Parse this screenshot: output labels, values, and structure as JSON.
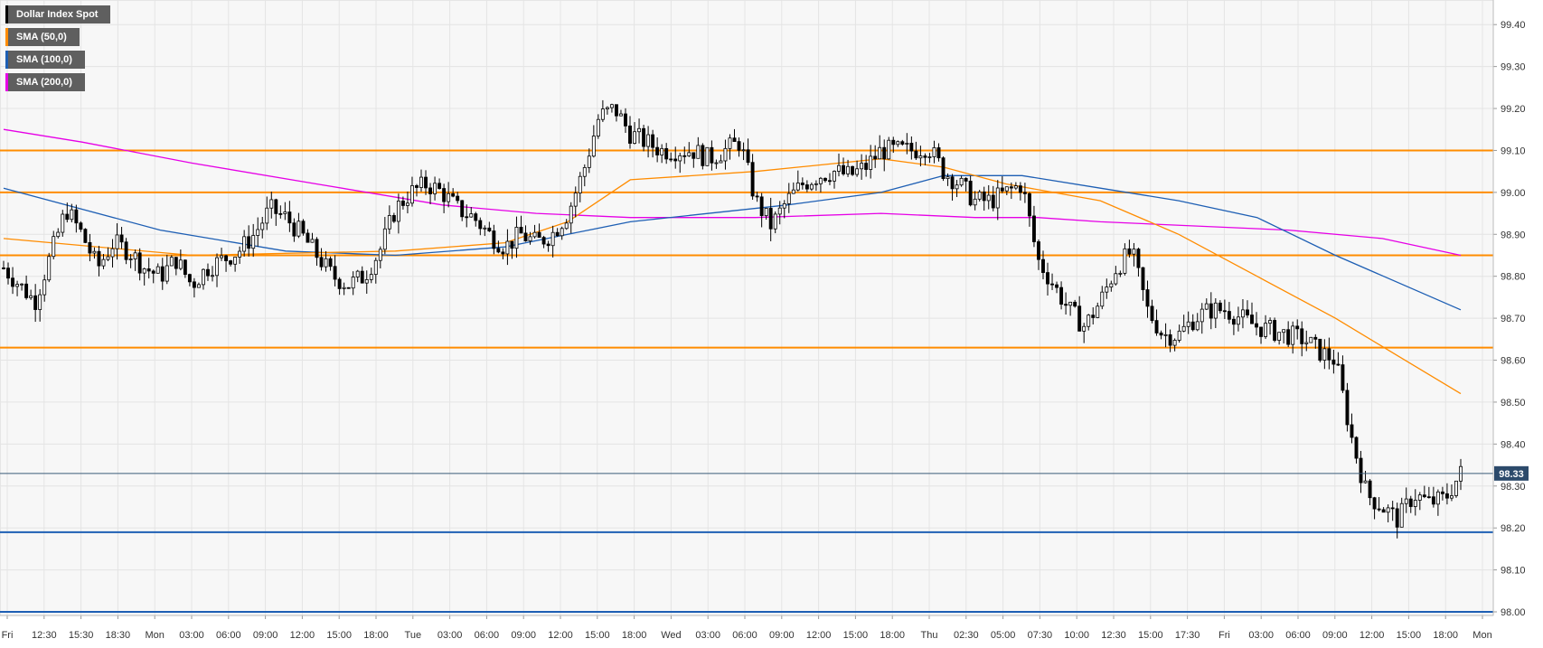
{
  "legend": {
    "items": [
      {
        "label": "Dollar Index Spot",
        "color": "#000000"
      },
      {
        "label": "SMA (50,0)",
        "color": "#ff8c00"
      },
      {
        "label": "SMA (100,0)",
        "color": "#1e5fb4"
      },
      {
        "label": "SMA (200,0)",
        "color": "#e600e6"
      }
    ]
  },
  "chart_data": {
    "type": "candlestick",
    "instrument": "Dollar Index Spot",
    "interval": "30 minutes",
    "ylim": [
      98.0,
      99.5
    ],
    "y_ticks": [
      "98.00",
      "98.10",
      "98.20",
      "98.30",
      "98.40",
      "98.50",
      "98.60",
      "98.70",
      "98.80",
      "98.90",
      "99.00",
      "99.10",
      "99.20",
      "99.30",
      "99.40"
    ],
    "x_ticks": [
      "Fri",
      "12:30",
      "15:30",
      "18:30",
      "Mon",
      "03:00",
      "06:00",
      "09:00",
      "12:00",
      "15:00",
      "18:00",
      "Tue",
      "03:00",
      "06:00",
      "09:00",
      "12:00",
      "15:00",
      "18:00",
      "Wed",
      "03:00",
      "06:00",
      "09:00",
      "12:00",
      "15:00",
      "18:00",
      "Thu",
      "02:30",
      "05:00",
      "07:30",
      "10:00",
      "12:30",
      "15:00",
      "17:30",
      "Fri",
      "03:00",
      "06:00",
      "09:00",
      "12:00",
      "15:00",
      "18:00",
      "Mon"
    ],
    "grid": true,
    "current_price": "98.33",
    "horizontal_levels": [
      {
        "value": 99.1,
        "color": "#ff8c00"
      },
      {
        "value": 99.0,
        "color": "#ff8c00"
      },
      {
        "value": 98.85,
        "color": "#ff8c00"
      },
      {
        "value": 98.63,
        "color": "#ff8c00"
      },
      {
        "value": 98.19,
        "color": "#1e5fb4"
      },
      {
        "value": 98.0,
        "color": "#1e5fb4"
      }
    ],
    "price_anchors": [
      [
        0,
        98.82
      ],
      [
        1,
        98.78
      ],
      [
        2,
        98.74
      ],
      [
        3,
        98.85
      ],
      [
        4,
        98.96
      ],
      [
        5,
        98.9
      ],
      [
        6,
        98.82
      ],
      [
        7,
        98.88
      ],
      [
        8,
        98.86
      ],
      [
        9,
        98.82
      ],
      [
        10,
        98.8
      ],
      [
        11,
        98.84
      ],
      [
        12,
        98.78
      ],
      [
        13,
        98.82
      ],
      [
        14,
        98.84
      ],
      [
        15,
        98.86
      ],
      [
        16,
        98.9
      ],
      [
        17,
        98.96
      ],
      [
        18,
        98.94
      ],
      [
        19,
        98.9
      ],
      [
        20,
        98.85
      ],
      [
        21,
        98.8
      ],
      [
        22,
        98.78
      ],
      [
        23,
        98.8
      ],
      [
        24,
        98.86
      ],
      [
        25,
        98.96
      ],
      [
        26,
        99.0
      ],
      [
        27,
        99.02
      ],
      [
        28,
        99.0
      ],
      [
        29,
        98.96
      ],
      [
        30,
        98.94
      ],
      [
        31,
        98.9
      ],
      [
        32,
        98.87
      ],
      [
        33,
        98.9
      ],
      [
        34,
        98.88
      ],
      [
        35,
        98.9
      ],
      [
        36,
        98.95
      ],
      [
        37,
        99.05
      ],
      [
        38,
        99.18
      ],
      [
        39,
        99.2
      ],
      [
        40,
        99.14
      ],
      [
        41,
        99.12
      ],
      [
        42,
        99.1
      ],
      [
        43,
        99.1
      ],
      [
        44,
        99.1
      ],
      [
        45,
        99.08
      ],
      [
        46,
        99.1
      ],
      [
        47,
        99.12
      ],
      [
        48,
        98.98
      ],
      [
        49,
        98.92
      ],
      [
        50,
        98.98
      ],
      [
        51,
        99.02
      ],
      [
        52,
        99.04
      ],
      [
        53,
        99.05
      ],
      [
        54,
        99.04
      ],
      [
        55,
        99.06
      ],
      [
        56,
        99.1
      ],
      [
        57,
        99.1
      ],
      [
        58,
        99.1
      ],
      [
        59,
        99.11
      ],
      [
        60,
        99.05
      ],
      [
        61,
        99.02
      ],
      [
        62,
        98.98
      ],
      [
        63,
        98.98
      ],
      [
        64,
        99.0
      ],
      [
        65,
        99.02
      ],
      [
        66,
        98.84
      ],
      [
        67,
        98.78
      ],
      [
        68,
        98.72
      ],
      [
        69,
        98.68
      ],
      [
        70,
        98.74
      ],
      [
        71,
        98.82
      ],
      [
        72,
        98.86
      ],
      [
        73,
        98.72
      ],
      [
        74,
        98.66
      ],
      [
        75,
        98.66
      ],
      [
        76,
        98.7
      ],
      [
        77,
        98.72
      ],
      [
        78,
        98.72
      ],
      [
        79,
        98.7
      ],
      [
        80,
        98.68
      ],
      [
        81,
        98.67
      ],
      [
        82,
        98.66
      ],
      [
        83,
        98.65
      ],
      [
        84,
        98.62
      ],
      [
        85,
        98.6
      ],
      [
        86,
        98.42
      ],
      [
        87,
        98.28
      ],
      [
        88,
        98.25
      ],
      [
        89,
        98.22
      ],
      [
        90,
        98.28
      ],
      [
        91,
        98.26
      ],
      [
        92,
        98.27
      ],
      [
        93,
        98.33
      ]
    ],
    "sma_50": [
      [
        0,
        98.89
      ],
      [
        12,
        98.85
      ],
      [
        25,
        98.86
      ],
      [
        32,
        98.88
      ],
      [
        36,
        98.93
      ],
      [
        40,
        99.03
      ],
      [
        48,
        99.05
      ],
      [
        56,
        99.08
      ],
      [
        60,
        99.06
      ],
      [
        64,
        99.02
      ],
      [
        70,
        98.98
      ],
      [
        75,
        98.9
      ],
      [
        80,
        98.8
      ],
      [
        85,
        98.7
      ],
      [
        89,
        98.61
      ],
      [
        93,
        98.52
      ]
    ],
    "sma_100": [
      [
        0,
        99.01
      ],
      [
        10,
        98.91
      ],
      [
        18,
        98.86
      ],
      [
        25,
        98.85
      ],
      [
        32,
        98.87
      ],
      [
        40,
        98.93
      ],
      [
        50,
        98.97
      ],
      [
        56,
        99.0
      ],
      [
        60,
        99.04
      ],
      [
        65,
        99.04
      ],
      [
        70,
        99.01
      ],
      [
        75,
        98.98
      ],
      [
        80,
        98.94
      ],
      [
        85,
        98.85
      ],
      [
        93,
        98.72
      ]
    ],
    "sma_200": [
      [
        0,
        99.15
      ],
      [
        5,
        99.12
      ],
      [
        12,
        99.07
      ],
      [
        20,
        99.02
      ],
      [
        28,
        98.97
      ],
      [
        34,
        98.95
      ],
      [
        40,
        98.94
      ],
      [
        48,
        98.94
      ],
      [
        56,
        98.95
      ],
      [
        62,
        98.94
      ],
      [
        66,
        98.94
      ],
      [
        70,
        98.93
      ],
      [
        76,
        98.92
      ],
      [
        82,
        98.91
      ],
      [
        88,
        98.89
      ],
      [
        93,
        98.85
      ]
    ]
  }
}
